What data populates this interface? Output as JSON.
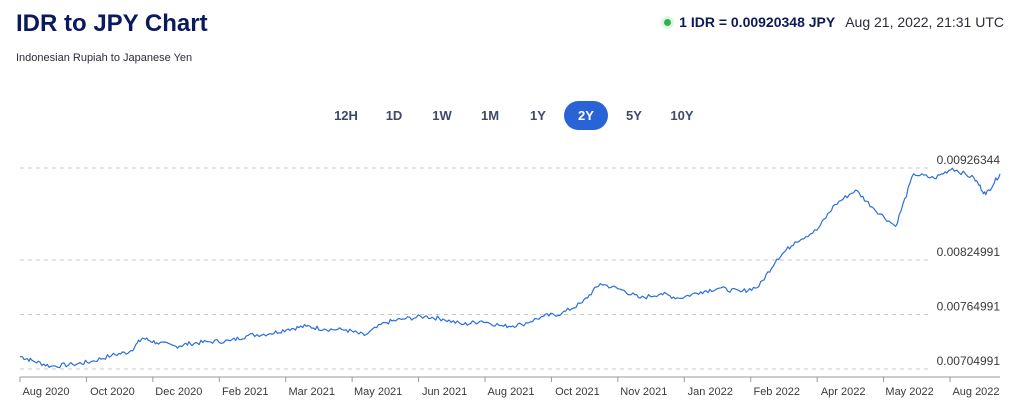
{
  "header": {
    "title": "IDR to JPY Chart",
    "subtitle": "Indonesian Rupiah to Japanese Yen",
    "rate": "1 IDR = 0.00920348 JPY",
    "timestamp": "Aug 21, 2022, 21:31 UTC",
    "live_color": "#2fb344"
  },
  "range_tabs": [
    {
      "label": "12H",
      "active": false
    },
    {
      "label": "1D",
      "active": false
    },
    {
      "label": "1W",
      "active": false
    },
    {
      "label": "1M",
      "active": false
    },
    {
      "label": "1Y",
      "active": false
    },
    {
      "label": "2Y",
      "active": true
    },
    {
      "label": "5Y",
      "active": false
    },
    {
      "label": "10Y",
      "active": false
    }
  ],
  "chart_data": {
    "type": "line",
    "line_color": "#2a6fdb",
    "grid": "horizontal dashed",
    "x_tick_labels": [
      "Aug 2020",
      "Oct 2020",
      "Dec 2020",
      "Feb 2021",
      "Mar 2021",
      "May 2021",
      "Jun 2021",
      "Aug 2021",
      "Oct 2021",
      "Nov 2021",
      "Jan 2022",
      "Feb 2022",
      "Apr 2022",
      "May 2022",
      "Aug 2022"
    ],
    "y_tick_labels": [
      "0.00926344",
      "0.00824991",
      "0.00764991",
      "0.00704991"
    ],
    "ylim": [
      0.00704991,
      0.00926344
    ],
    "xlim": [
      "2020-07-22",
      "2022-08-21"
    ],
    "series": [
      {
        "x": [
          "2020-07-22",
          "2020-08-01",
          "2020-08-15",
          "2020-09-01",
          "2020-09-15",
          "2020-10-01",
          "2020-10-15",
          "2020-10-25",
          "2020-11-05",
          "2020-11-20",
          "2020-12-01",
          "2020-12-15",
          "2021-01-01",
          "2021-01-15",
          "2021-02-01",
          "2021-02-15",
          "2021-03-01",
          "2021-03-15",
          "2021-04-01",
          "2021-04-15",
          "2021-05-01",
          "2021-05-15",
          "2021-06-01",
          "2021-06-15",
          "2021-07-01",
          "2021-07-15",
          "2021-08-01",
          "2021-08-15",
          "2021-09-01",
          "2021-09-15",
          "2021-10-01",
          "2021-10-15",
          "2021-11-01",
          "2021-11-15",
          "2021-12-01",
          "2021-12-15",
          "2022-01-01",
          "2022-01-15",
          "2022-02-01",
          "2022-02-15",
          "2022-03-01",
          "2022-03-15",
          "2022-04-01",
          "2022-04-15",
          "2022-05-01",
          "2022-05-15",
          "2022-06-01",
          "2022-06-15",
          "2022-07-01",
          "2022-07-15",
          "2022-08-01",
          "2022-08-10",
          "2022-08-21"
        ],
        "values": [
          0.00719,
          0.00714,
          0.00708,
          0.0071,
          0.00713,
          0.0072,
          0.00724,
          0.00739,
          0.00734,
          0.0073,
          0.00733,
          0.00735,
          0.00736,
          0.00742,
          0.00744,
          0.00749,
          0.00752,
          0.00749,
          0.00748,
          0.00742,
          0.00756,
          0.0076,
          0.00763,
          0.0076,
          0.00754,
          0.00758,
          0.00752,
          0.00754,
          0.00763,
          0.00766,
          0.00778,
          0.00799,
          0.00792,
          0.00783,
          0.00788,
          0.00783,
          0.0079,
          0.00794,
          0.0079,
          0.00796,
          0.00826,
          0.00845,
          0.00858,
          0.00886,
          0.00902,
          0.00882,
          0.00862,
          0.0092,
          0.00915,
          0.00926,
          0.00915,
          0.00897,
          0.0092
        ]
      }
    ]
  }
}
